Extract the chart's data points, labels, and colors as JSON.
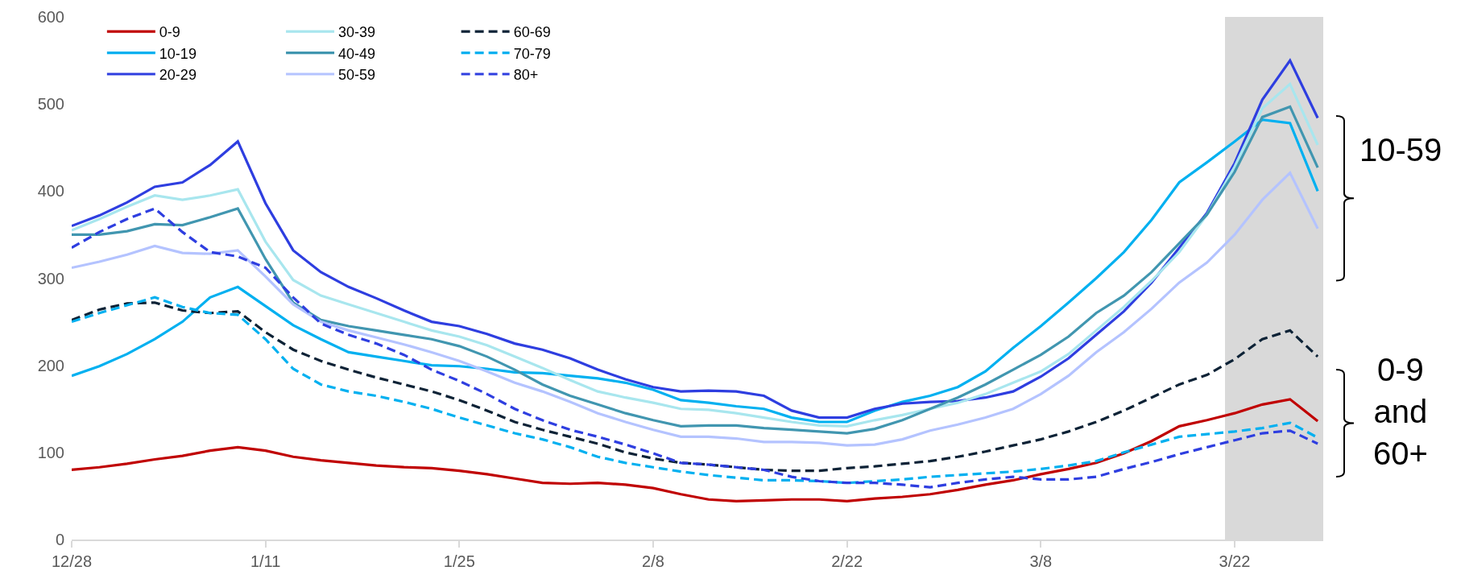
{
  "chart_data": {
    "type": "line",
    "categories": [
      "12/28",
      null,
      null,
      null,
      null,
      null,
      null,
      "1/11",
      null,
      null,
      null,
      null,
      null,
      null,
      "1/25",
      null,
      null,
      null,
      null,
      null,
      null,
      "2/8",
      null,
      null,
      null,
      null,
      null,
      null,
      "2/22",
      null,
      null,
      null,
      null,
      null,
      null,
      "3/8",
      null,
      null,
      null,
      null,
      null,
      null,
      "3/22",
      null,
      null,
      null
    ],
    "ylim": [
      0,
      600
    ],
    "yticks": [
      0,
      100,
      200,
      300,
      400,
      500,
      600
    ],
    "grid": false,
    "legend": "top left",
    "marker": "none",
    "series": [
      {
        "name": "0-9",
        "color": "#c00000",
        "line_style": "solid",
        "values": [
          80,
          83,
          87,
          92,
          96,
          102,
          106,
          102,
          95,
          91,
          88,
          85,
          83,
          82,
          79,
          75,
          70,
          65,
          64,
          65,
          63,
          59,
          52,
          46,
          44,
          45,
          46,
          46,
          44,
          47,
          49,
          52,
          57,
          63,
          68,
          75,
          81,
          88,
          99,
          113,
          130,
          137,
          145,
          155,
          161,
          136
        ]
      },
      {
        "name": "10-19",
        "color": "#00b0f0",
        "line_style": "solid",
        "values": [
          188,
          199,
          213,
          230,
          250,
          278,
          290,
          268,
          246,
          230,
          215,
          210,
          205,
          200,
          199,
          196,
          192,
          191,
          188,
          185,
          180,
          172,
          160,
          157,
          153,
          150,
          140,
          135,
          135,
          148,
          158,
          165,
          175,
          193,
          220,
          245,
          272,
          300,
          330,
          367,
          410,
          433,
          457,
          482,
          478,
          400
        ]
      },
      {
        "name": "20-29",
        "color": "#2e3ee0",
        "line_style": "solid",
        "values": [
          360,
          372,
          387,
          405,
          410,
          430,
          457,
          386,
          332,
          307,
          290,
          277,
          263,
          250,
          245,
          236,
          225,
          218,
          208,
          195,
          184,
          175,
          170,
          171,
          170,
          165,
          148,
          140,
          140,
          150,
          156,
          158,
          159,
          163,
          170,
          187,
          208,
          235,
          262,
          295,
          335,
          375,
          432,
          505,
          550,
          484
        ]
      },
      {
        "name": "30-39",
        "color": "#a8e6ee",
        "line_style": "solid",
        "values": [
          355,
          368,
          382,
          395,
          390,
          395,
          402,
          342,
          298,
          280,
          270,
          260,
          250,
          240,
          233,
          223,
          210,
          197,
          183,
          170,
          163,
          157,
          150,
          149,
          145,
          140,
          135,
          131,
          130,
          137,
          143,
          150,
          157,
          167,
          180,
          193,
          213,
          240,
          267,
          297,
          330,
          373,
          428,
          495,
          523,
          453
        ]
      },
      {
        "name": "40-49",
        "color": "#4196b0",
        "line_style": "solid",
        "values": [
          350,
          350,
          354,
          362,
          361,
          370,
          380,
          322,
          272,
          252,
          245,
          240,
          235,
          230,
          222,
          210,
          195,
          178,
          165,
          155,
          145,
          137,
          130,
          131,
          131,
          128,
          126,
          124,
          122,
          127,
          137,
          150,
          163,
          178,
          195,
          212,
          233,
          260,
          280,
          307,
          340,
          373,
          422,
          485,
          497,
          427
        ]
      },
      {
        "name": "50-59",
        "color": "#b4c3ff",
        "line_style": "solid",
        "values": [
          312,
          319,
          327,
          337,
          329,
          328,
          332,
          302,
          270,
          250,
          240,
          232,
          224,
          215,
          205,
          193,
          180,
          170,
          158,
          145,
          135,
          126,
          118,
          118,
          116,
          112,
          112,
          111,
          108,
          109,
          115,
          125,
          132,
          140,
          150,
          167,
          188,
          215,
          238,
          265,
          295,
          318,
          350,
          390,
          421,
          357
        ]
      },
      {
        "name": "60-69",
        "color": "#0d2236",
        "line_style": "dashed",
        "values": [
          252,
          264,
          271,
          272,
          263,
          260,
          262,
          238,
          218,
          205,
          195,
          186,
          178,
          170,
          160,
          148,
          135,
          126,
          118,
          110,
          100,
          93,
          88,
          86,
          83,
          80,
          79,
          79,
          82,
          84,
          87,
          90,
          95,
          101,
          108,
          115,
          124,
          135,
          148,
          163,
          178,
          189,
          207,
          230,
          240,
          210
        ]
      },
      {
        "name": "70-79",
        "color": "#00b0f0",
        "line_style": "dashed",
        "values": [
          250,
          260,
          269,
          278,
          267,
          260,
          258,
          230,
          196,
          178,
          170,
          165,
          158,
          150,
          140,
          131,
          122,
          115,
          106,
          95,
          88,
          83,
          78,
          74,
          71,
          68,
          68,
          67,
          65,
          67,
          69,
          72,
          74,
          76,
          78,
          81,
          85,
          90,
          100,
          109,
          118,
          121,
          124,
          128,
          134,
          117
        ]
      },
      {
        "name": "80+",
        "color": "#2e3ee0",
        "line_style": "dashed",
        "values": [
          335,
          353,
          368,
          380,
          353,
          330,
          325,
          312,
          278,
          248,
          235,
          225,
          212,
          195,
          182,
          167,
          150,
          137,
          126,
          118,
          109,
          99,
          88,
          86,
          83,
          80,
          72,
          67,
          65,
          65,
          63,
          60,
          65,
          69,
          72,
          69,
          69,
          72,
          81,
          89,
          98,
          106,
          114,
          122,
          125,
          110
        ]
      }
    ],
    "annotations": [
      "10-59",
      "0-9 and 60+"
    ]
  }
}
